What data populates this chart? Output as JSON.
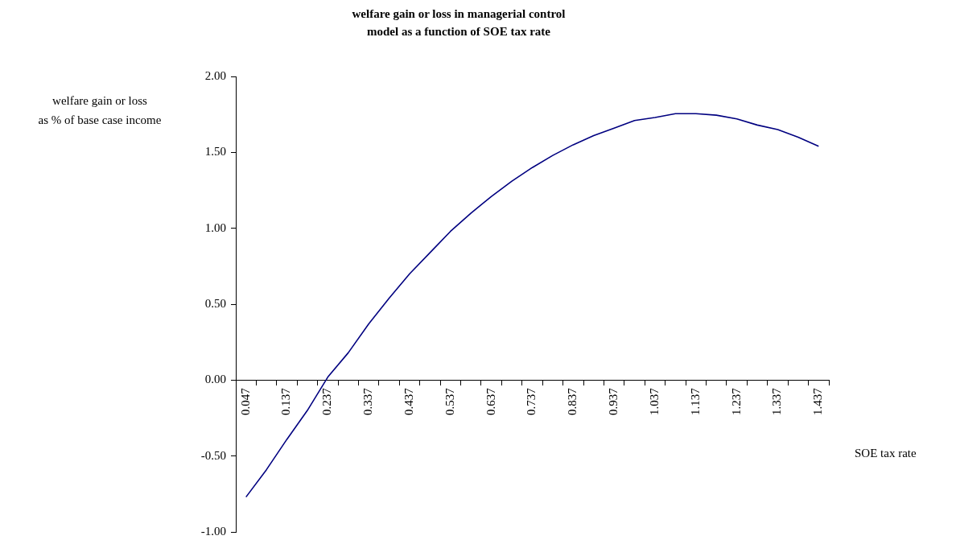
{
  "chart_data": {
    "type": "line",
    "title": "welfare gain or loss in managerial control\nmodel as a function of SOE tax rate",
    "xlabel": "SOE tax rate",
    "ylabel": "welfare gain or loss\nas % of base case income",
    "categories": [
      "0.047",
      null,
      "0.137",
      null,
      "0.237",
      null,
      "0.337",
      null,
      "0.437",
      null,
      "0.537",
      null,
      "0.637",
      null,
      "0.737",
      null,
      "0.837",
      null,
      "0.937",
      null,
      "1.037",
      null,
      "1.137",
      null,
      "1.237",
      null,
      "1.337",
      null,
      "1.437"
    ],
    "series": [
      {
        "color": "#000080",
        "values": [
          -0.77,
          -0.59,
          -0.39,
          -0.2,
          0.02,
          0.18,
          0.37,
          0.54,
          0.7,
          0.84,
          0.98,
          1.1,
          1.21,
          1.31,
          1.4,
          1.48,
          1.55,
          1.61,
          1.66,
          1.71,
          1.73,
          1.755,
          1.755,
          1.745,
          1.72,
          1.68,
          1.65,
          1.6,
          1.54
        ]
      }
    ],
    "ylim": [
      -1,
      2
    ],
    "yticks": [
      {
        "value": -1,
        "label": "-1.00"
      },
      {
        "value": -0.5,
        "label": "-0.50"
      },
      {
        "value": 0,
        "label": "0.00"
      },
      {
        "value": 0.5,
        "label": "0.50"
      },
      {
        "value": 1,
        "label": "1.00"
      },
      {
        "value": 1.5,
        "label": "1.50"
      },
      {
        "value": 2,
        "label": "2.00"
      }
    ],
    "grid": false,
    "legend": false,
    "marker": "none",
    "line_style": "solid"
  }
}
